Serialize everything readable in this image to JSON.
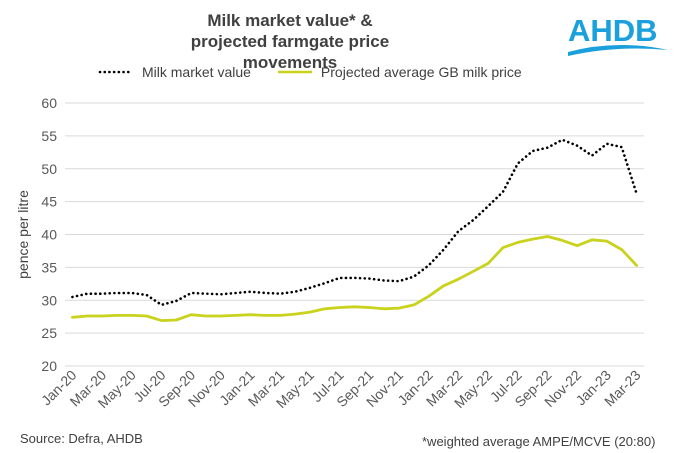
{
  "title_line1": "Milk market value* &",
  "title_line2": "projected farmgate price movements",
  "logo_text": "AHDB",
  "source": "Source: Defra, AHDB",
  "note": "*weighted average AMPE/MCVE  (20:80)",
  "colors": {
    "mmv": "#000000",
    "gb": "#c9d21c",
    "logo": "#1aa0dc"
  },
  "chart_data": {
    "type": "line",
    "ylabel": "pence per litre",
    "ylim": [
      20,
      60
    ],
    "yticks": [
      20,
      25,
      30,
      35,
      40,
      45,
      50,
      55,
      60
    ],
    "x": [
      "Jan-20",
      "Feb-20",
      "Mar-20",
      "Apr-20",
      "May-20",
      "Jun-20",
      "Jul-20",
      "Aug-20",
      "Sep-20",
      "Oct-20",
      "Nov-20",
      "Dec-20",
      "Jan-21",
      "Feb-21",
      "Mar-21",
      "Apr-21",
      "May-21",
      "Jun-21",
      "Jul-21",
      "Aug-21",
      "Sep-21",
      "Oct-21",
      "Nov-21",
      "Dec-21",
      "Jan-22",
      "Feb-22",
      "Mar-22",
      "Apr-22",
      "May-22",
      "Jun-22",
      "Jul-22",
      "Aug-22",
      "Sep-22",
      "Oct-22",
      "Nov-22",
      "Dec-22",
      "Jan-23",
      "Feb-23",
      "Mar-23"
    ],
    "xtick_labels": [
      "Jan-20",
      "Mar-20",
      "May-20",
      "Jul-20",
      "Sep-20",
      "Nov-20",
      "Jan-21",
      "Mar-21",
      "May-21",
      "Jul-21",
      "Sep-21",
      "Nov-21",
      "Jan-22",
      "Mar-22",
      "May-22",
      "Jul-22",
      "Sep-22",
      "Nov-22",
      "Jan-23",
      "Mar-23"
    ],
    "legend_position": "top",
    "grid": true,
    "series": [
      {
        "name": "Milk market value",
        "style": "dotted",
        "values": [
          30.5,
          31.0,
          31.0,
          31.1,
          31.1,
          30.8,
          29.3,
          29.9,
          31.1,
          31.0,
          30.9,
          31.1,
          31.3,
          31.1,
          31.0,
          31.3,
          31.9,
          32.6,
          33.4,
          33.4,
          33.3,
          33.0,
          32.9,
          33.6,
          35.3,
          37.7,
          40.5,
          42.2,
          44.3,
          46.5,
          50.8,
          52.7,
          53.2,
          54.4,
          53.5,
          52.0,
          53.8,
          53.3,
          46.2
        ]
      },
      {
        "name": "Projected average GB milk price",
        "style": "solid",
        "values": [
          27.4,
          27.6,
          27.6,
          27.7,
          27.7,
          27.6,
          26.9,
          27.0,
          27.8,
          27.6,
          27.6,
          27.7,
          27.8,
          27.7,
          27.7,
          27.9,
          28.2,
          28.7,
          28.9,
          29.0,
          28.9,
          28.7,
          28.8,
          29.3,
          30.6,
          32.2,
          33.2,
          34.4,
          35.6,
          38.0,
          38.8,
          39.3,
          39.7,
          39.1,
          38.3,
          39.2,
          39.0,
          37.7,
          35.3
        ]
      }
    ]
  }
}
